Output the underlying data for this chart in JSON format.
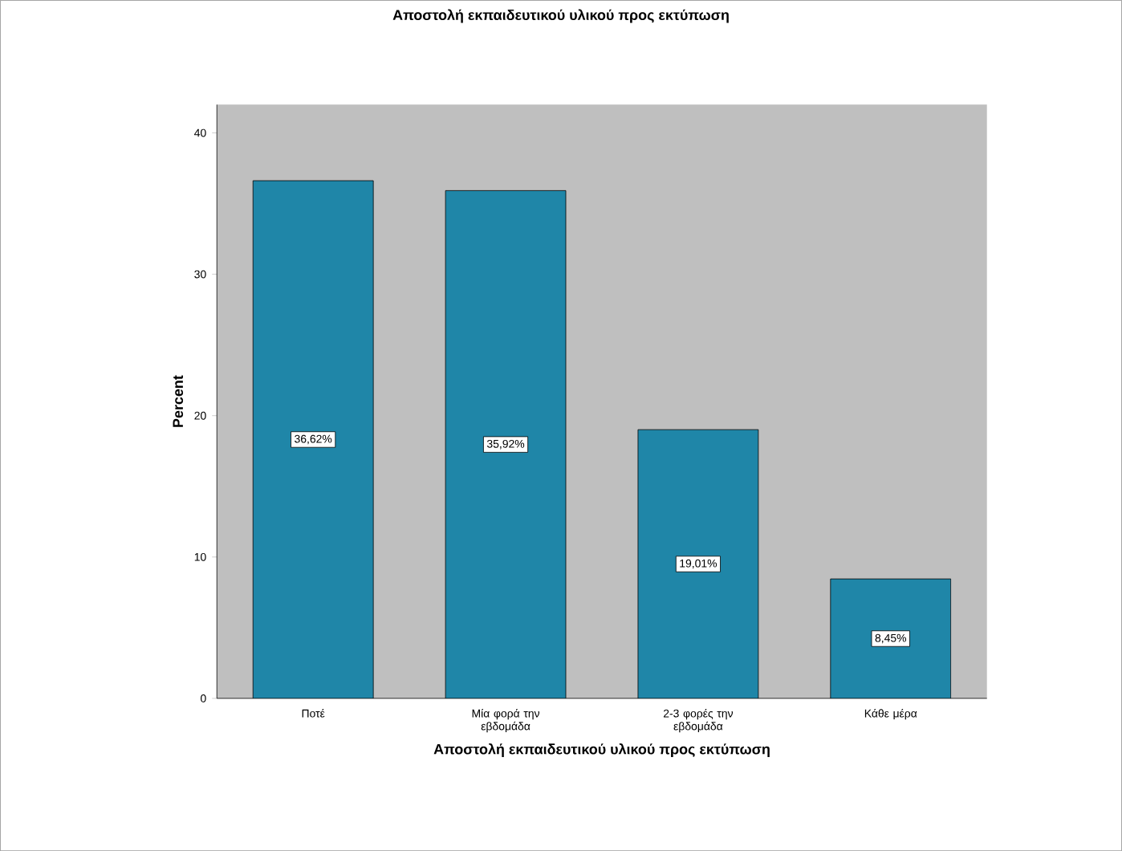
{
  "chart_data": {
    "type": "bar",
    "title": "Αποστολή εκπαιδευτικού υλικού προς εκτύπωση",
    "xlabel": "Αποστολή εκπαιδευτικού υλικού προς εκτύπωση",
    "ylabel": "Percent",
    "categories": [
      "Ποτέ",
      "Μία φορά την εβδομάδα",
      "2-3 φορές την εβδομάδα",
      "Κάθε μέρα"
    ],
    "values": [
      36.62,
      35.92,
      19.01,
      8.45
    ],
    "value_labels": [
      "36,62%",
      "35,92%",
      "19,01%",
      "8,45%"
    ],
    "color": "#1f86a8",
    "ylim": [
      0,
      42
    ],
    "yticks": [
      0,
      10,
      20,
      30,
      40
    ],
    "grid": false
  }
}
